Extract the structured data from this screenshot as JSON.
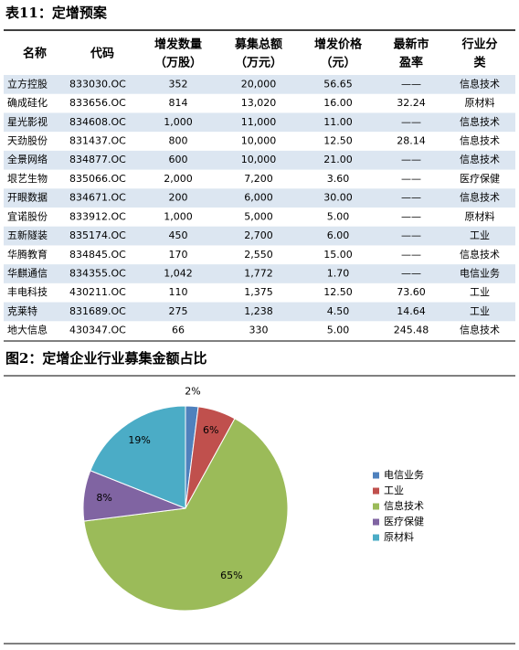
{
  "table": {
    "title": "表11：定增预案",
    "headers": [
      [
        "名称"
      ],
      [
        "代码"
      ],
      [
        "增发数量",
        "（万股）"
      ],
      [
        "募集总额",
        "（万元）"
      ],
      [
        "增发价格",
        "（元）"
      ],
      [
        "最新市",
        "盈率"
      ],
      [
        "行业分",
        "类"
      ]
    ],
    "rows": [
      [
        "立方控股",
        "833030.OC",
        "352",
        "20,000",
        "56.65",
        "——",
        "信息技术"
      ],
      [
        "确成硅化",
        "833656.OC",
        "814",
        "13,020",
        "16.00",
        "32.24",
        "原材料"
      ],
      [
        "星光影视",
        "834608.OC",
        "1,000",
        "11,000",
        "11.00",
        "——",
        "信息技术"
      ],
      [
        "天劲股份",
        "831437.OC",
        "800",
        "10,000",
        "12.50",
        "28.14",
        "信息技术"
      ],
      [
        "全景网络",
        "834877.OC",
        "600",
        "10,000",
        "21.00",
        "——",
        "信息技术"
      ],
      [
        "垠艺生物",
        "835066.OC",
        "2,000",
        "7,200",
        "3.60",
        "——",
        "医疗保健"
      ],
      [
        "开眼数据",
        "834671.OC",
        "200",
        "6,000",
        "30.00",
        "——",
        "信息技术"
      ],
      [
        "宜诺股份",
        "833912.OC",
        "1,000",
        "5,000",
        "5.00",
        "——",
        "原材料"
      ],
      [
        "五新隧装",
        "835174.OC",
        "450",
        "2,700",
        "6.00",
        "——",
        "工业"
      ],
      [
        "华腾教育",
        "834845.OC",
        "170",
        "2,550",
        "15.00",
        "——",
        "信息技术"
      ],
      [
        "华麒通信",
        "834355.OC",
        "1,042",
        "1,772",
        "1.70",
        "——",
        "电信业务"
      ],
      [
        "丰电科技",
        "430211.OC",
        "110",
        "1,375",
        "12.50",
        "73.60",
        "工业"
      ],
      [
        "克莱特",
        "831689.OC",
        "275",
        "1,238",
        "4.50",
        "14.64",
        "工业"
      ],
      [
        "地大信息",
        "430347.OC",
        "66",
        "330",
        "5.00",
        "245.48",
        "信息技术"
      ]
    ]
  },
  "chart_data": {
    "type": "pie",
    "title": "图2：定增企业行业募集金额占比",
    "categories": [
      "电信业务",
      "工业",
      "信息技术",
      "医疗保健",
      "原材料"
    ],
    "values": [
      2,
      6,
      65,
      8,
      19
    ],
    "value_labels": [
      "2%",
      "6%",
      "65%",
      "8%",
      "19%"
    ],
    "colors": [
      "#4f81bd",
      "#c0504d",
      "#9bbb59",
      "#8064a2",
      "#4bacc6"
    ],
    "legend": "right"
  }
}
